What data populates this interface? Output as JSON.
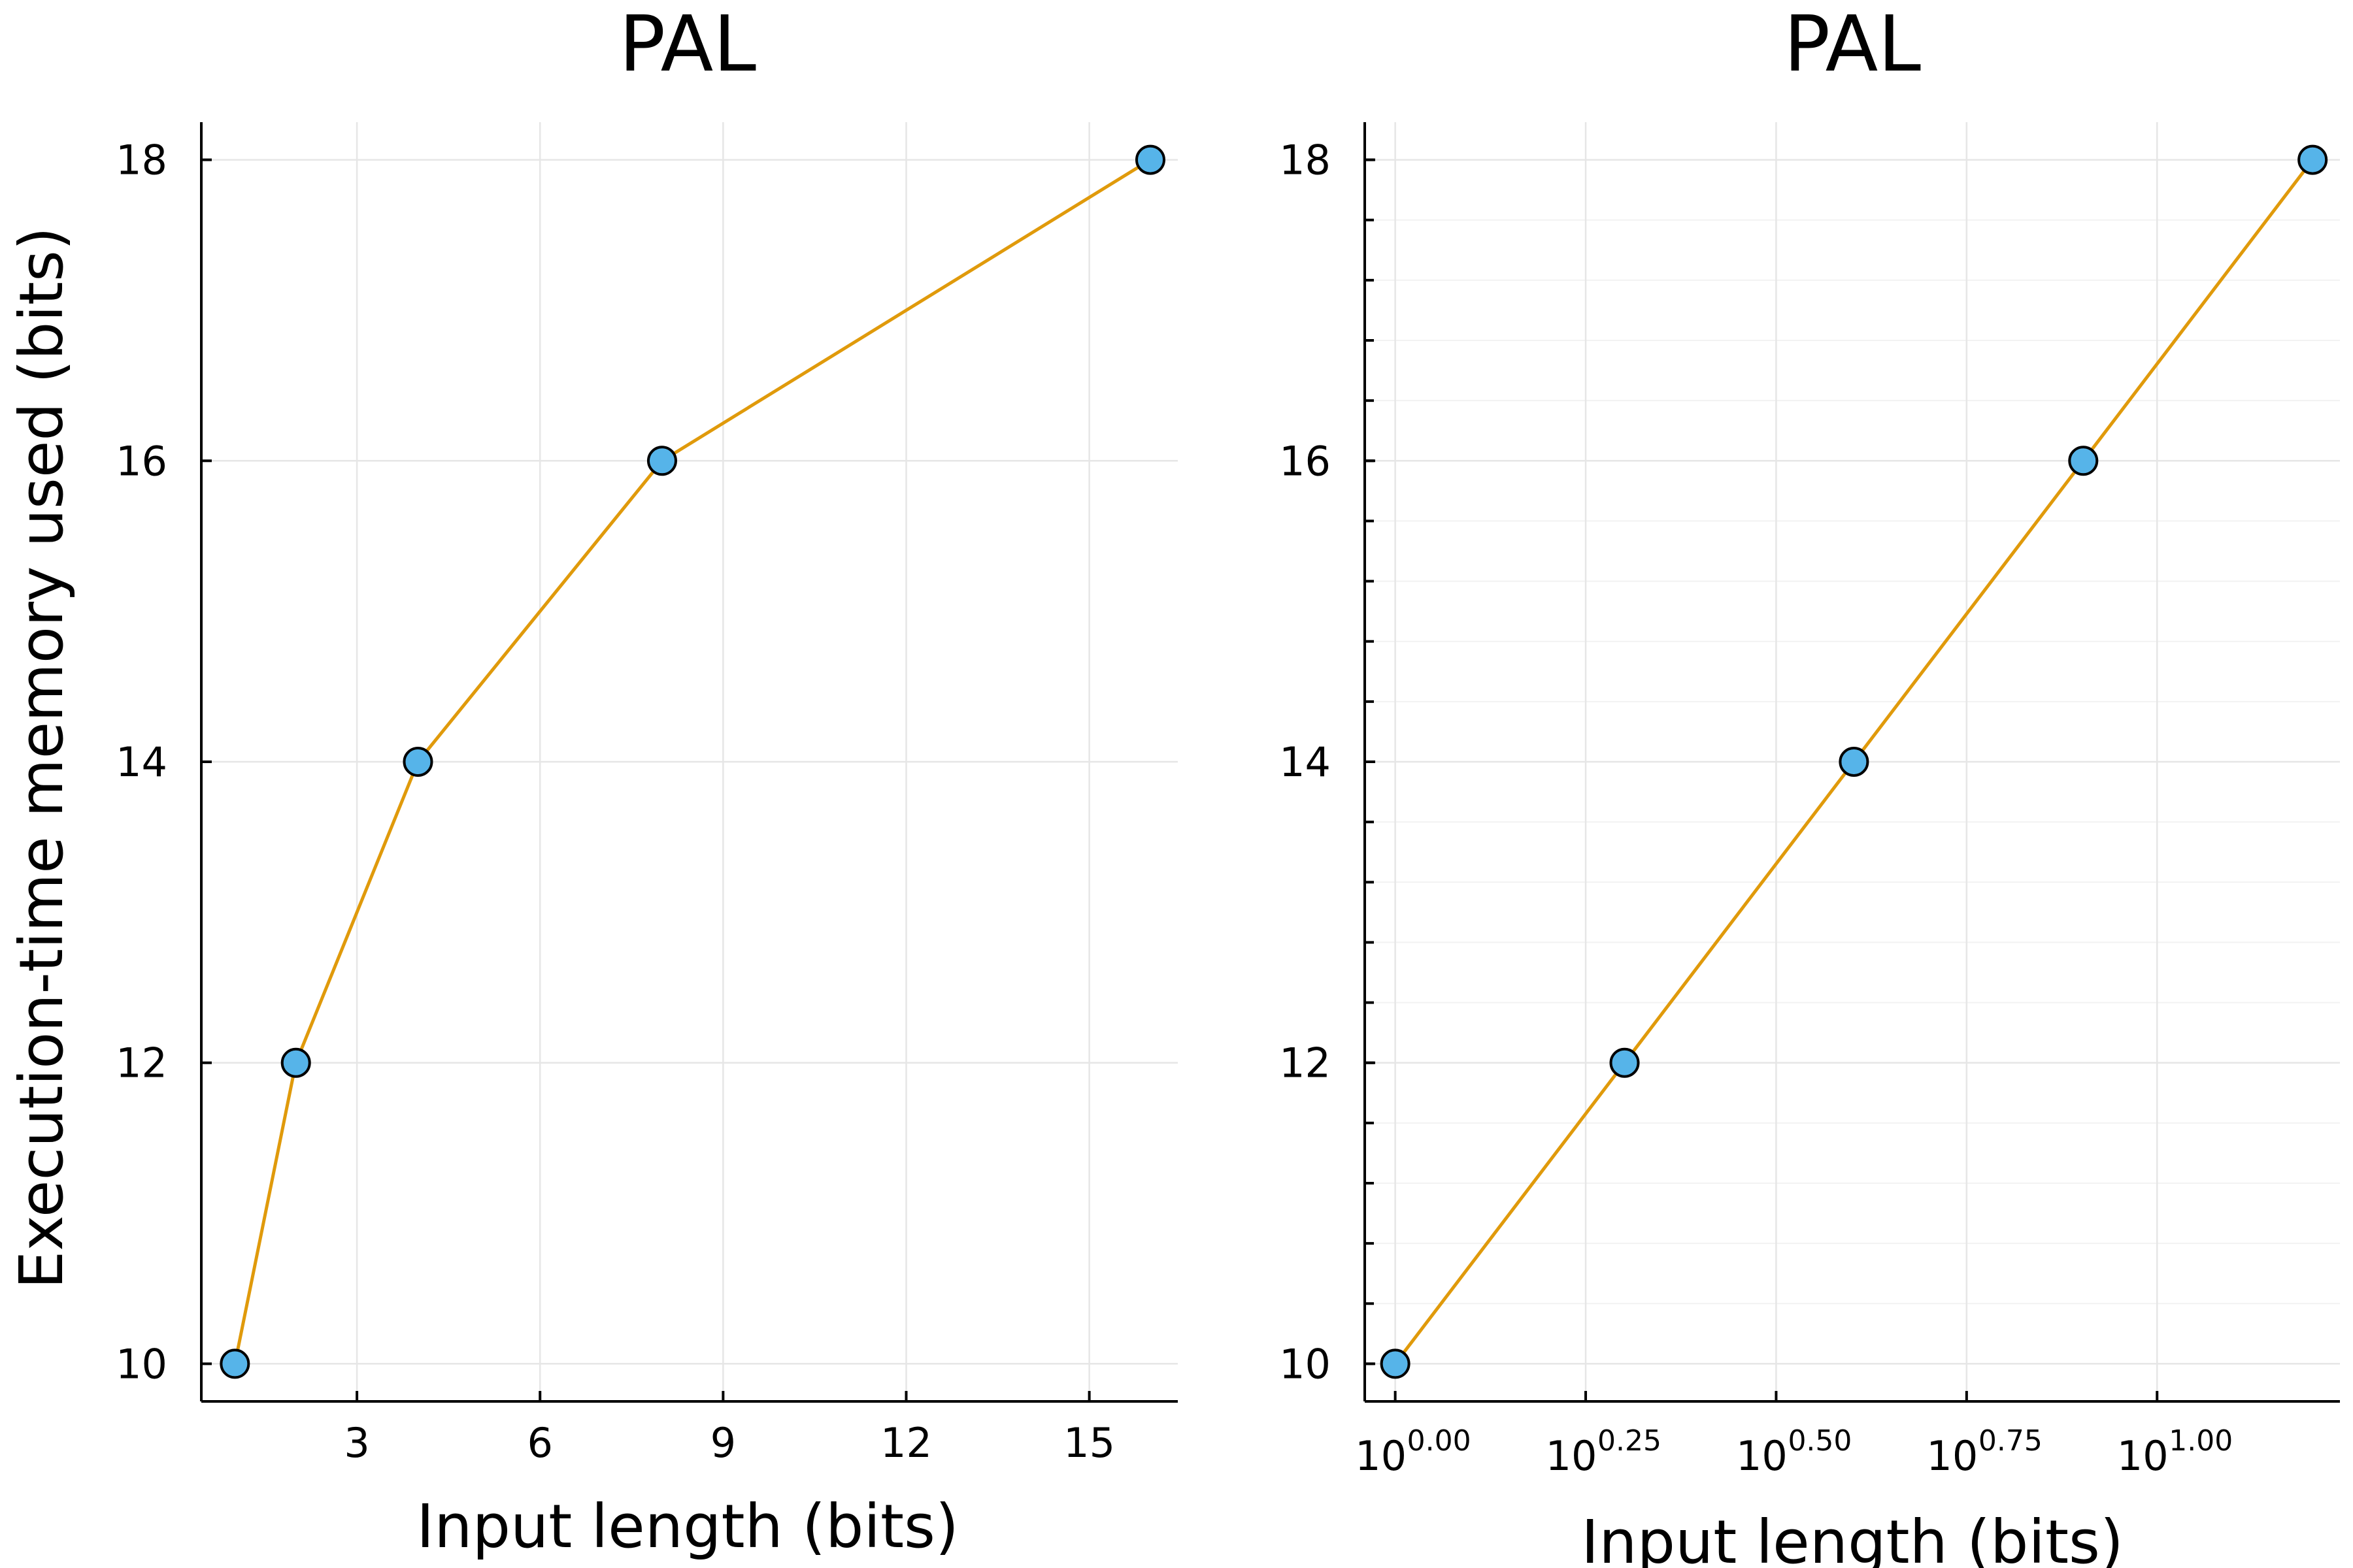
{
  "chart_data": [
    {
      "type": "line",
      "title": "PAL",
      "xlabel": "Input length (bits)",
      "ylabel": "Execution-time memory used (bits)",
      "x": [
        1,
        2,
        4,
        8,
        16
      ],
      "y": [
        10,
        12,
        14,
        16,
        18
      ],
      "xscale": "linear",
      "xlim": [
        0.45,
        16.45
      ],
      "ylim": [
        9.75,
        18.25
      ],
      "xticks": [
        3,
        6,
        9,
        12,
        15
      ],
      "xtick_labels": [
        "3",
        "6",
        "9",
        "12",
        "15"
      ],
      "yticks": [
        10,
        12,
        14,
        16,
        18
      ],
      "ytick_labels": [
        "10",
        "12",
        "14",
        "16",
        "18"
      ],
      "grid": true,
      "line_color": "#e09a0b",
      "marker_color": "#56b4e9",
      "marker_edge": "#000000"
    },
    {
      "type": "line",
      "title": "PAL",
      "xlabel": "Input length (bits)",
      "ylabel": "",
      "x": [
        1,
        2,
        4,
        8,
        16
      ],
      "y": [
        10,
        12,
        14,
        16,
        18
      ],
      "xscale": "log10",
      "xlim": [
        -0.04,
        1.24
      ],
      "ylim": [
        9.75,
        18.25
      ],
      "xticks": [
        0,
        0.25,
        0.5,
        0.75,
        1.0
      ],
      "xtick_labels": [
        {
          "base": "10",
          "exp": "0.00"
        },
        {
          "base": "10",
          "exp": "0.25"
        },
        {
          "base": "10",
          "exp": "0.50"
        },
        {
          "base": "10",
          "exp": "0.75"
        },
        {
          "base": "10",
          "exp": "1.00"
        }
      ],
      "yticks": [
        10,
        12,
        14,
        16,
        18
      ],
      "ytick_labels": [
        "10",
        "12",
        "14",
        "16",
        "18"
      ],
      "grid": true,
      "minor_y_grid": true,
      "line_color": "#e09a0b",
      "marker_color": "#56b4e9",
      "marker_edge": "#000000"
    }
  ]
}
